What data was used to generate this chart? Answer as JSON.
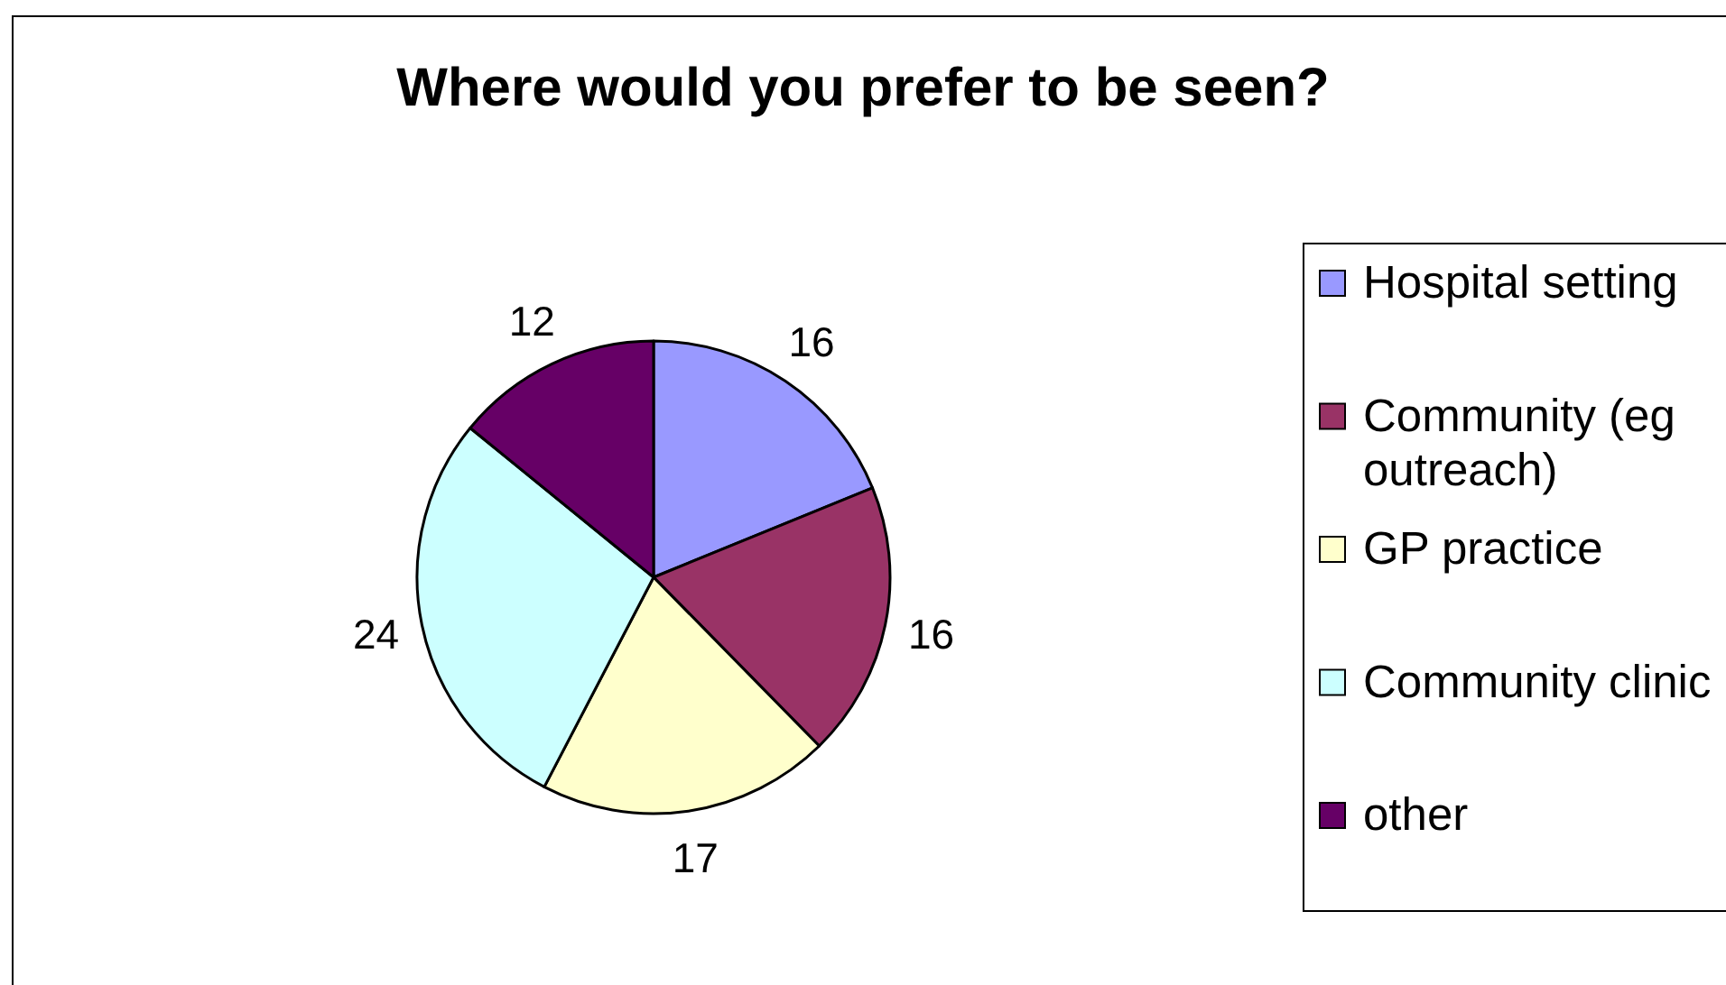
{
  "chart_data": {
    "type": "pie",
    "title": "Where would you prefer to be seen?",
    "categories": [
      "Hospital setting",
      "Community (eg outreach)",
      "GP practice",
      "Community clinic",
      "other"
    ],
    "values": [
      16,
      16,
      17,
      24,
      12
    ],
    "colors": [
      "#9999ff",
      "#993366",
      "#ffffcc",
      "#ccffff",
      "#660066"
    ],
    "data_labels": true,
    "legend": "right"
  }
}
